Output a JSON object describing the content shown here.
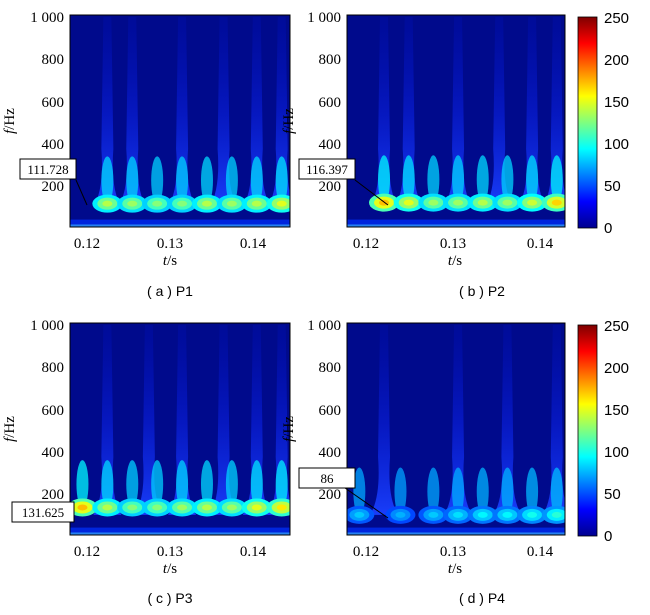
{
  "chart_data": [
    {
      "type": "heatmap",
      "caption": "( a ) P1",
      "xlabel_var": "t",
      "xlabel_unit": "/s",
      "ylabel_var": "f",
      "ylabel_unit": "/Hz",
      "xlim": [
        0.115,
        0.1415
      ],
      "ylim": [
        0,
        1000
      ],
      "x_ticks": [
        "0.12",
        "0.13",
        "0.14"
      ],
      "y_ticks": [
        "200",
        "400",
        "600",
        "800",
        "1 000"
      ],
      "annotation": {
        "label": "111.728",
        "x": 0.1205,
        "y": 111.728
      },
      "colorscale": "jet",
      "peaks": [
        {
          "t": 0.1195,
          "f": 110,
          "amp": 120
        },
        {
          "t": 0.1225,
          "f": 110,
          "amp": 115
        },
        {
          "t": 0.1255,
          "f": 110,
          "amp": 110
        },
        {
          "t": 0.1285,
          "f": 110,
          "amp": 110
        },
        {
          "t": 0.1315,
          "f": 110,
          "amp": 120
        },
        {
          "t": 0.1345,
          "f": 110,
          "amp": 115
        },
        {
          "t": 0.1375,
          "f": 110,
          "amp": 120
        },
        {
          "t": 0.1405,
          "f": 110,
          "amp": 130
        }
      ],
      "columns": [
        0.1195,
        0.1225,
        0.1285,
        0.1335,
        0.1375,
        0.1405
      ]
    },
    {
      "type": "heatmap",
      "caption": "( b ) P2",
      "xlabel_var": "t",
      "xlabel_unit": "/s",
      "ylabel_var": "f",
      "ylabel_unit": "/Hz",
      "xlim": [
        0.115,
        0.1415
      ],
      "ylim": [
        0,
        1000
      ],
      "x_ticks": [
        "0.12",
        "0.13",
        "0.14"
      ],
      "y_ticks": [
        "200",
        "400",
        "600",
        "800",
        "1 000"
      ],
      "annotation": {
        "label": "116.397",
        "x": 0.1225,
        "y": 116.397
      },
      "colorscale": "jet",
      "peaks": [
        {
          "t": 0.1195,
          "f": 115,
          "amp": 150
        },
        {
          "t": 0.1225,
          "f": 115,
          "amp": 130
        },
        {
          "t": 0.1255,
          "f": 115,
          "amp": 115
        },
        {
          "t": 0.1285,
          "f": 115,
          "amp": 115
        },
        {
          "t": 0.1315,
          "f": 115,
          "amp": 120
        },
        {
          "t": 0.1345,
          "f": 115,
          "amp": 115
        },
        {
          "t": 0.1375,
          "f": 115,
          "amp": 125
        },
        {
          "t": 0.1405,
          "f": 115,
          "amp": 145
        }
      ],
      "columns": [
        0.1195,
        0.1225,
        0.1285,
        0.1335,
        0.1375,
        0.1405
      ]
    },
    {
      "type": "heatmap",
      "caption": "( c ) P3",
      "xlabel_var": "t",
      "xlabel_unit": "/s",
      "ylabel_var": "f",
      "ylabel_unit": "/Hz",
      "xlim": [
        0.115,
        0.1415
      ],
      "ylim": [
        0,
        1000
      ],
      "x_ticks": [
        "0.12",
        "0.13",
        "0.14"
      ],
      "y_ticks": [
        "200",
        "400",
        "600",
        "800",
        "1 000"
      ],
      "annotation": {
        "label": "131.625",
        "x": 0.1165,
        "y": 131.625
      },
      "colorscale": "jet",
      "peaks": [
        {
          "t": 0.1165,
          "f": 130,
          "amp": 150
        },
        {
          "t": 0.1195,
          "f": 130,
          "amp": 120
        },
        {
          "t": 0.1225,
          "f": 130,
          "amp": 110
        },
        {
          "t": 0.1255,
          "f": 130,
          "amp": 110
        },
        {
          "t": 0.1285,
          "f": 130,
          "amp": 115
        },
        {
          "t": 0.1315,
          "f": 130,
          "amp": 120
        },
        {
          "t": 0.1345,
          "f": 130,
          "amp": 115
        },
        {
          "t": 0.1375,
          "f": 130,
          "amp": 130
        },
        {
          "t": 0.1405,
          "f": 130,
          "amp": 140
        }
      ],
      "columns": [
        0.1195,
        0.1245,
        0.1285,
        0.1335,
        0.1375,
        0.1405
      ]
    },
    {
      "type": "heatmap",
      "caption": "( d ) P4",
      "xlabel_var": "t",
      "xlabel_unit": "/s",
      "ylabel_var": "f",
      "ylabel_unit": "/Hz",
      "xlim": [
        0.115,
        0.1415
      ],
      "ylim": [
        0,
        1000
      ],
      "x_ticks": [
        "0.12",
        "0.13",
        "0.14"
      ],
      "y_ticks": [
        "200",
        "400",
        "600",
        "800",
        "1 000"
      ],
      "annotation": {
        "label": "86",
        "x": 0.1235,
        "y": 86
      },
      "colorscale": "jet",
      "peaks": [
        {
          "t": 0.1165,
          "f": 95,
          "amp": 70
        },
        {
          "t": 0.1215,
          "f": 95,
          "amp": 65
        },
        {
          "t": 0.1255,
          "f": 95,
          "amp": 70
        },
        {
          "t": 0.1285,
          "f": 95,
          "amp": 75
        },
        {
          "t": 0.1315,
          "f": 95,
          "amp": 80
        },
        {
          "t": 0.1345,
          "f": 95,
          "amp": 80
        },
        {
          "t": 0.1375,
          "f": 95,
          "amp": 85
        },
        {
          "t": 0.1405,
          "f": 95,
          "amp": 90
        }
      ],
      "columns": [
        0.1195,
        0.1285,
        0.1345,
        0.1405
      ]
    }
  ],
  "colorbars": [
    {
      "ticks": [
        "0",
        "50",
        "100",
        "150",
        "200",
        "250"
      ],
      "range": [
        0,
        250
      ]
    },
    {
      "ticks": [
        "0",
        "50",
        "100",
        "150",
        "200",
        "250"
      ],
      "range": [
        0,
        250
      ]
    }
  ]
}
